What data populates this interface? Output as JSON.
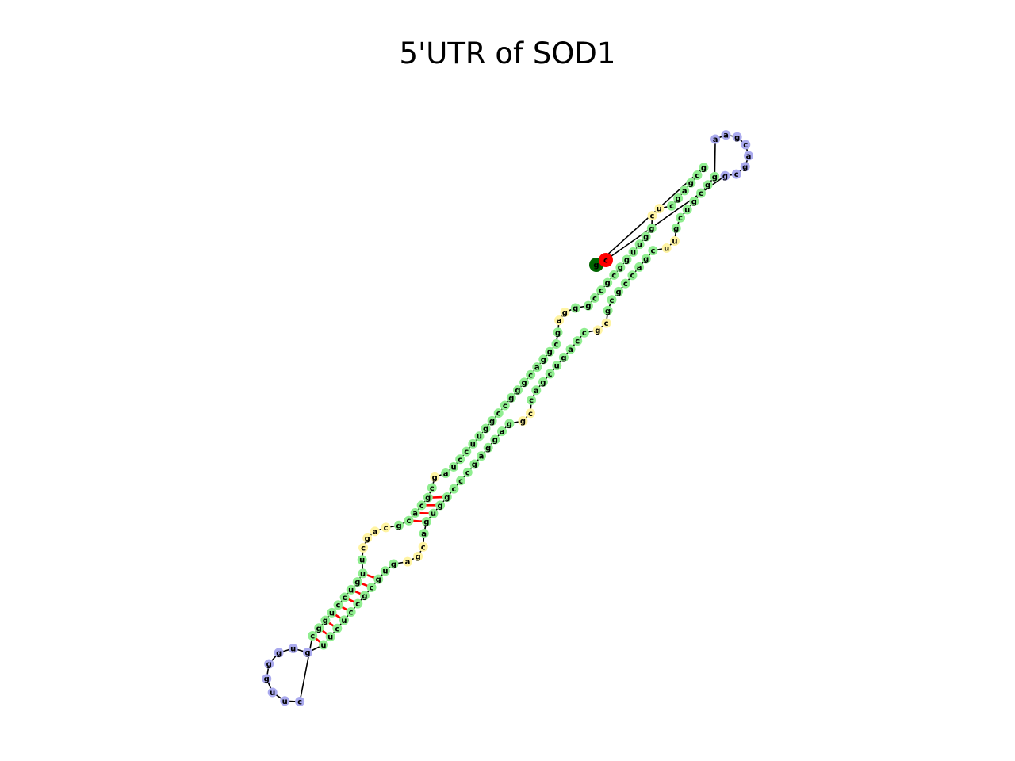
{
  "title": "5'UTR of SOD1",
  "colors": {
    "stem": "#90ee90",
    "loop": "#aaaaee",
    "bulge": "#fff4a3",
    "start": "#006400",
    "end": "#ff0000",
    "backbone": "#000000",
    "pair": "#ff0000"
  },
  "structure": {
    "strand_5p": "gcgagcucgguuggcgccgggagcggacgggccgguuccuagcgcacgcagcuuguccuggc",
    "apical_loop": "cuugggug",
    "strand_3p": "uucuccgcgugagcaguggcccgaggaggccagcugaccgcgcgccagcuugcugcgg",
    "terminal_loop": "aagcagcg",
    "start_base": "g",
    "end_base": "c"
  }
}
